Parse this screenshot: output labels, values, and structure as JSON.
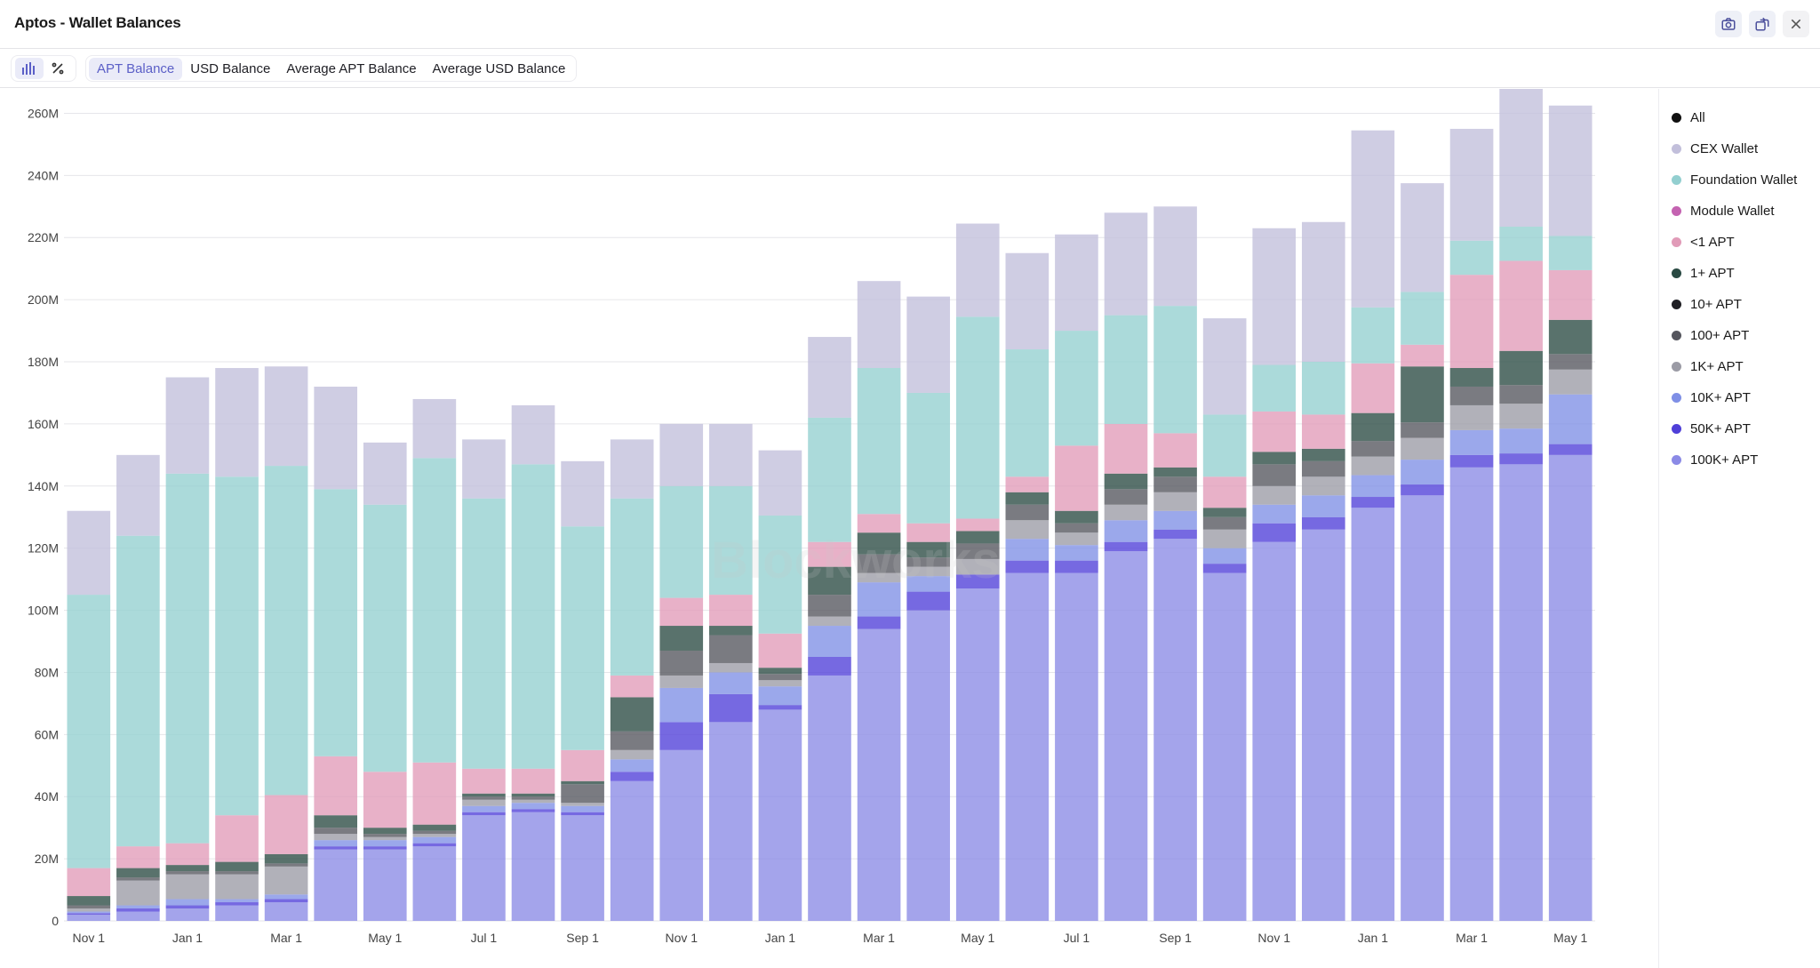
{
  "header": {
    "title": "Aptos - Wallet Balances"
  },
  "header_buttons": [
    {
      "name": "screenshot-button",
      "icon": "camera-icon"
    },
    {
      "name": "share-button",
      "icon": "share-icon"
    },
    {
      "name": "close-button",
      "icon": "close-icon"
    }
  ],
  "toolbar": {
    "icons": [
      "bar-chart-icon",
      "percent-icon"
    ],
    "tabs": [
      {
        "label": "APT Balance",
        "active": true
      },
      {
        "label": "USD Balance",
        "active": false
      },
      {
        "label": "Average APT Balance",
        "active": false
      },
      {
        "label": "Average USD Balance",
        "active": false
      }
    ]
  },
  "watermark": "Blockworks",
  "legend": [
    {
      "label": "All",
      "color": "#111111"
    },
    {
      "label": "CEX Wallet",
      "color": "#c2bfdb"
    },
    {
      "label": "Foundation Wallet",
      "color": "#93cfd0"
    },
    {
      "label": "Module Wallet",
      "color": "#c463b1"
    },
    {
      "label": "<1 APT",
      "color": "#e19bb8"
    },
    {
      "label": "1+ APT",
      "color": "#2a4a43"
    },
    {
      "label": "10+ APT",
      "color": "#1f1f24"
    },
    {
      "label": "100+ APT",
      "color": "#55565e"
    },
    {
      "label": "1K+ APT",
      "color": "#9b9ba5"
    },
    {
      "label": "10K+ APT",
      "color": "#7f8fe6"
    },
    {
      "label": "50K+ APT",
      "color": "#4f3fd8"
    },
    {
      "label": "100K+ APT",
      "color": "#8b8ae6"
    }
  ],
  "chart_data": {
    "type": "bar",
    "stacked": true,
    "title": "Aptos - Wallet Balances",
    "xlabel": "",
    "ylabel": "",
    "ylim": [
      0,
      265
    ],
    "yticks": [
      0,
      20,
      40,
      60,
      80,
      100,
      120,
      140,
      160,
      180,
      200,
      220,
      240,
      260
    ],
    "ytick_labels": [
      "0",
      "20M",
      "40M",
      "60M",
      "80M",
      "100M",
      "120M",
      "140M",
      "160M",
      "180M",
      "200M",
      "220M",
      "240M",
      "260M"
    ],
    "x_tick_labels": [
      {
        "index": 0,
        "label": "Nov 1"
      },
      {
        "index": 2,
        "label": "Jan 1"
      },
      {
        "index": 4,
        "label": "Mar 1"
      },
      {
        "index": 6,
        "label": "May 1"
      },
      {
        "index": 8,
        "label": "Jul 1"
      },
      {
        "index": 10,
        "label": "Sep 1"
      },
      {
        "index": 12,
        "label": "Nov 1"
      },
      {
        "index": 14,
        "label": "Jan 1"
      },
      {
        "index": 16,
        "label": "Mar 1"
      },
      {
        "index": 18,
        "label": "May 1"
      },
      {
        "index": 20,
        "label": "Jul 1"
      },
      {
        "index": 22,
        "label": "Sep 1"
      },
      {
        "index": 24,
        "label": "Nov 1"
      },
      {
        "index": 26,
        "label": "Jan 1"
      },
      {
        "index": 28,
        "label": "Mar 1"
      },
      {
        "index": 30,
        "label": "May 1"
      }
    ],
    "num_bars": 31,
    "series": [
      {
        "name": "100K+ APT",
        "color": "#8b8ae6",
        "values": [
          2,
          3,
          4,
          5,
          6,
          23,
          23,
          24,
          34,
          35,
          34,
          45,
          55,
          64,
          68,
          79,
          94,
          100,
          107,
          112,
          112,
          119,
          123,
          112,
          122,
          126,
          133,
          137,
          146,
          147,
          150
        ]
      },
      {
        "name": "50K+ APT",
        "color": "#4f3fd8",
        "values": [
          0.5,
          1,
          1,
          1,
          1,
          1,
          1,
          1,
          1,
          1,
          1,
          3,
          9,
          9,
          1.5,
          6,
          4,
          6,
          4.5,
          4,
          4,
          3,
          3,
          3,
          6,
          4,
          3.5,
          3.5,
          4,
          3.5,
          3.5
        ]
      },
      {
        "name": "10K+ APT",
        "color": "#7f8fe6",
        "values": [
          0.5,
          1,
          2,
          1,
          1.5,
          2,
          2,
          2,
          2,
          2,
          2,
          4,
          11,
          7,
          6,
          10,
          11,
          5,
          0,
          7,
          5,
          7,
          6,
          5,
          6,
          7,
          7,
          8,
          8,
          8,
          16
        ]
      },
      {
        "name": "1K+ APT",
        "color": "#9b9ba5",
        "values": [
          1,
          8,
          8,
          8,
          9,
          2,
          1,
          1,
          2,
          1,
          1,
          3,
          4,
          3,
          2,
          3,
          3,
          3,
          5,
          6,
          4,
          5,
          6,
          6,
          6,
          6,
          6,
          7,
          8,
          8,
          8
        ]
      },
      {
        "name": "100+ APT",
        "color": "#55565e",
        "values": [
          1,
          1,
          1,
          1,
          1,
          2,
          1,
          1,
          1,
          1,
          6,
          6,
          8,
          9,
          2,
          7,
          6,
          3,
          5,
          5,
          3,
          5,
          5,
          4,
          7,
          5,
          5,
          5,
          6,
          6,
          5
        ]
      },
      {
        "name": "10+ APT",
        "color": "#1f1f24",
        "values": [
          0,
          0,
          0,
          0,
          0,
          0,
          0,
          0,
          0,
          0,
          0,
          0,
          0,
          0,
          0,
          0,
          0,
          0,
          0,
          0,
          0,
          0,
          0,
          0,
          0,
          0,
          0,
          0,
          0,
          0,
          0
        ]
      },
      {
        "name": "1+ APT",
        "color": "#2a4a43",
        "values": [
          3,
          3,
          2,
          3,
          3,
          4,
          2,
          2,
          1,
          1,
          1,
          11,
          8,
          3,
          2,
          9,
          7,
          5,
          4,
          4,
          4,
          5,
          3,
          3,
          4,
          4,
          9,
          18,
          6,
          11,
          11
        ]
      },
      {
        "name": "<1 APT",
        "color": "#e19bb8",
        "values": [
          9,
          7,
          7,
          15,
          19,
          19,
          18,
          20,
          8,
          8,
          10,
          7,
          9,
          10,
          11,
          8,
          6,
          6,
          4,
          5,
          21,
          16,
          11,
          10,
          13,
          11,
          16,
          7,
          30,
          29,
          16
        ]
      },
      {
        "name": "Module Wallet",
        "color": "#c463b1",
        "values": [
          0,
          0,
          0,
          0,
          0,
          0,
          0,
          0,
          0,
          0,
          0,
          0,
          0,
          0,
          0,
          0,
          0,
          0,
          0,
          0,
          0,
          0,
          0,
          0,
          0,
          0,
          0,
          0,
          0,
          0,
          0
        ]
      },
      {
        "name": "Foundation Wallet",
        "color": "#93cfd0",
        "values": [
          88,
          100,
          119,
          109,
          106,
          86,
          86,
          98,
          87,
          98,
          72,
          57,
          36,
          35,
          38,
          40,
          47,
          42,
          65,
          41,
          37,
          35,
          41,
          20,
          15,
          17,
          18,
          17,
          11,
          11,
          11
        ]
      },
      {
        "name": "CEX Wallet",
        "color": "#c2bfdb",
        "values": [
          27,
          26,
          31,
          35,
          32,
          33,
          20,
          19,
          19,
          19,
          21,
          19,
          20,
          20,
          21,
          26,
          28,
          31,
          30,
          31,
          31,
          33,
          32,
          31,
          44,
          45,
          57,
          35,
          36,
          45,
          42
        ]
      }
    ]
  }
}
